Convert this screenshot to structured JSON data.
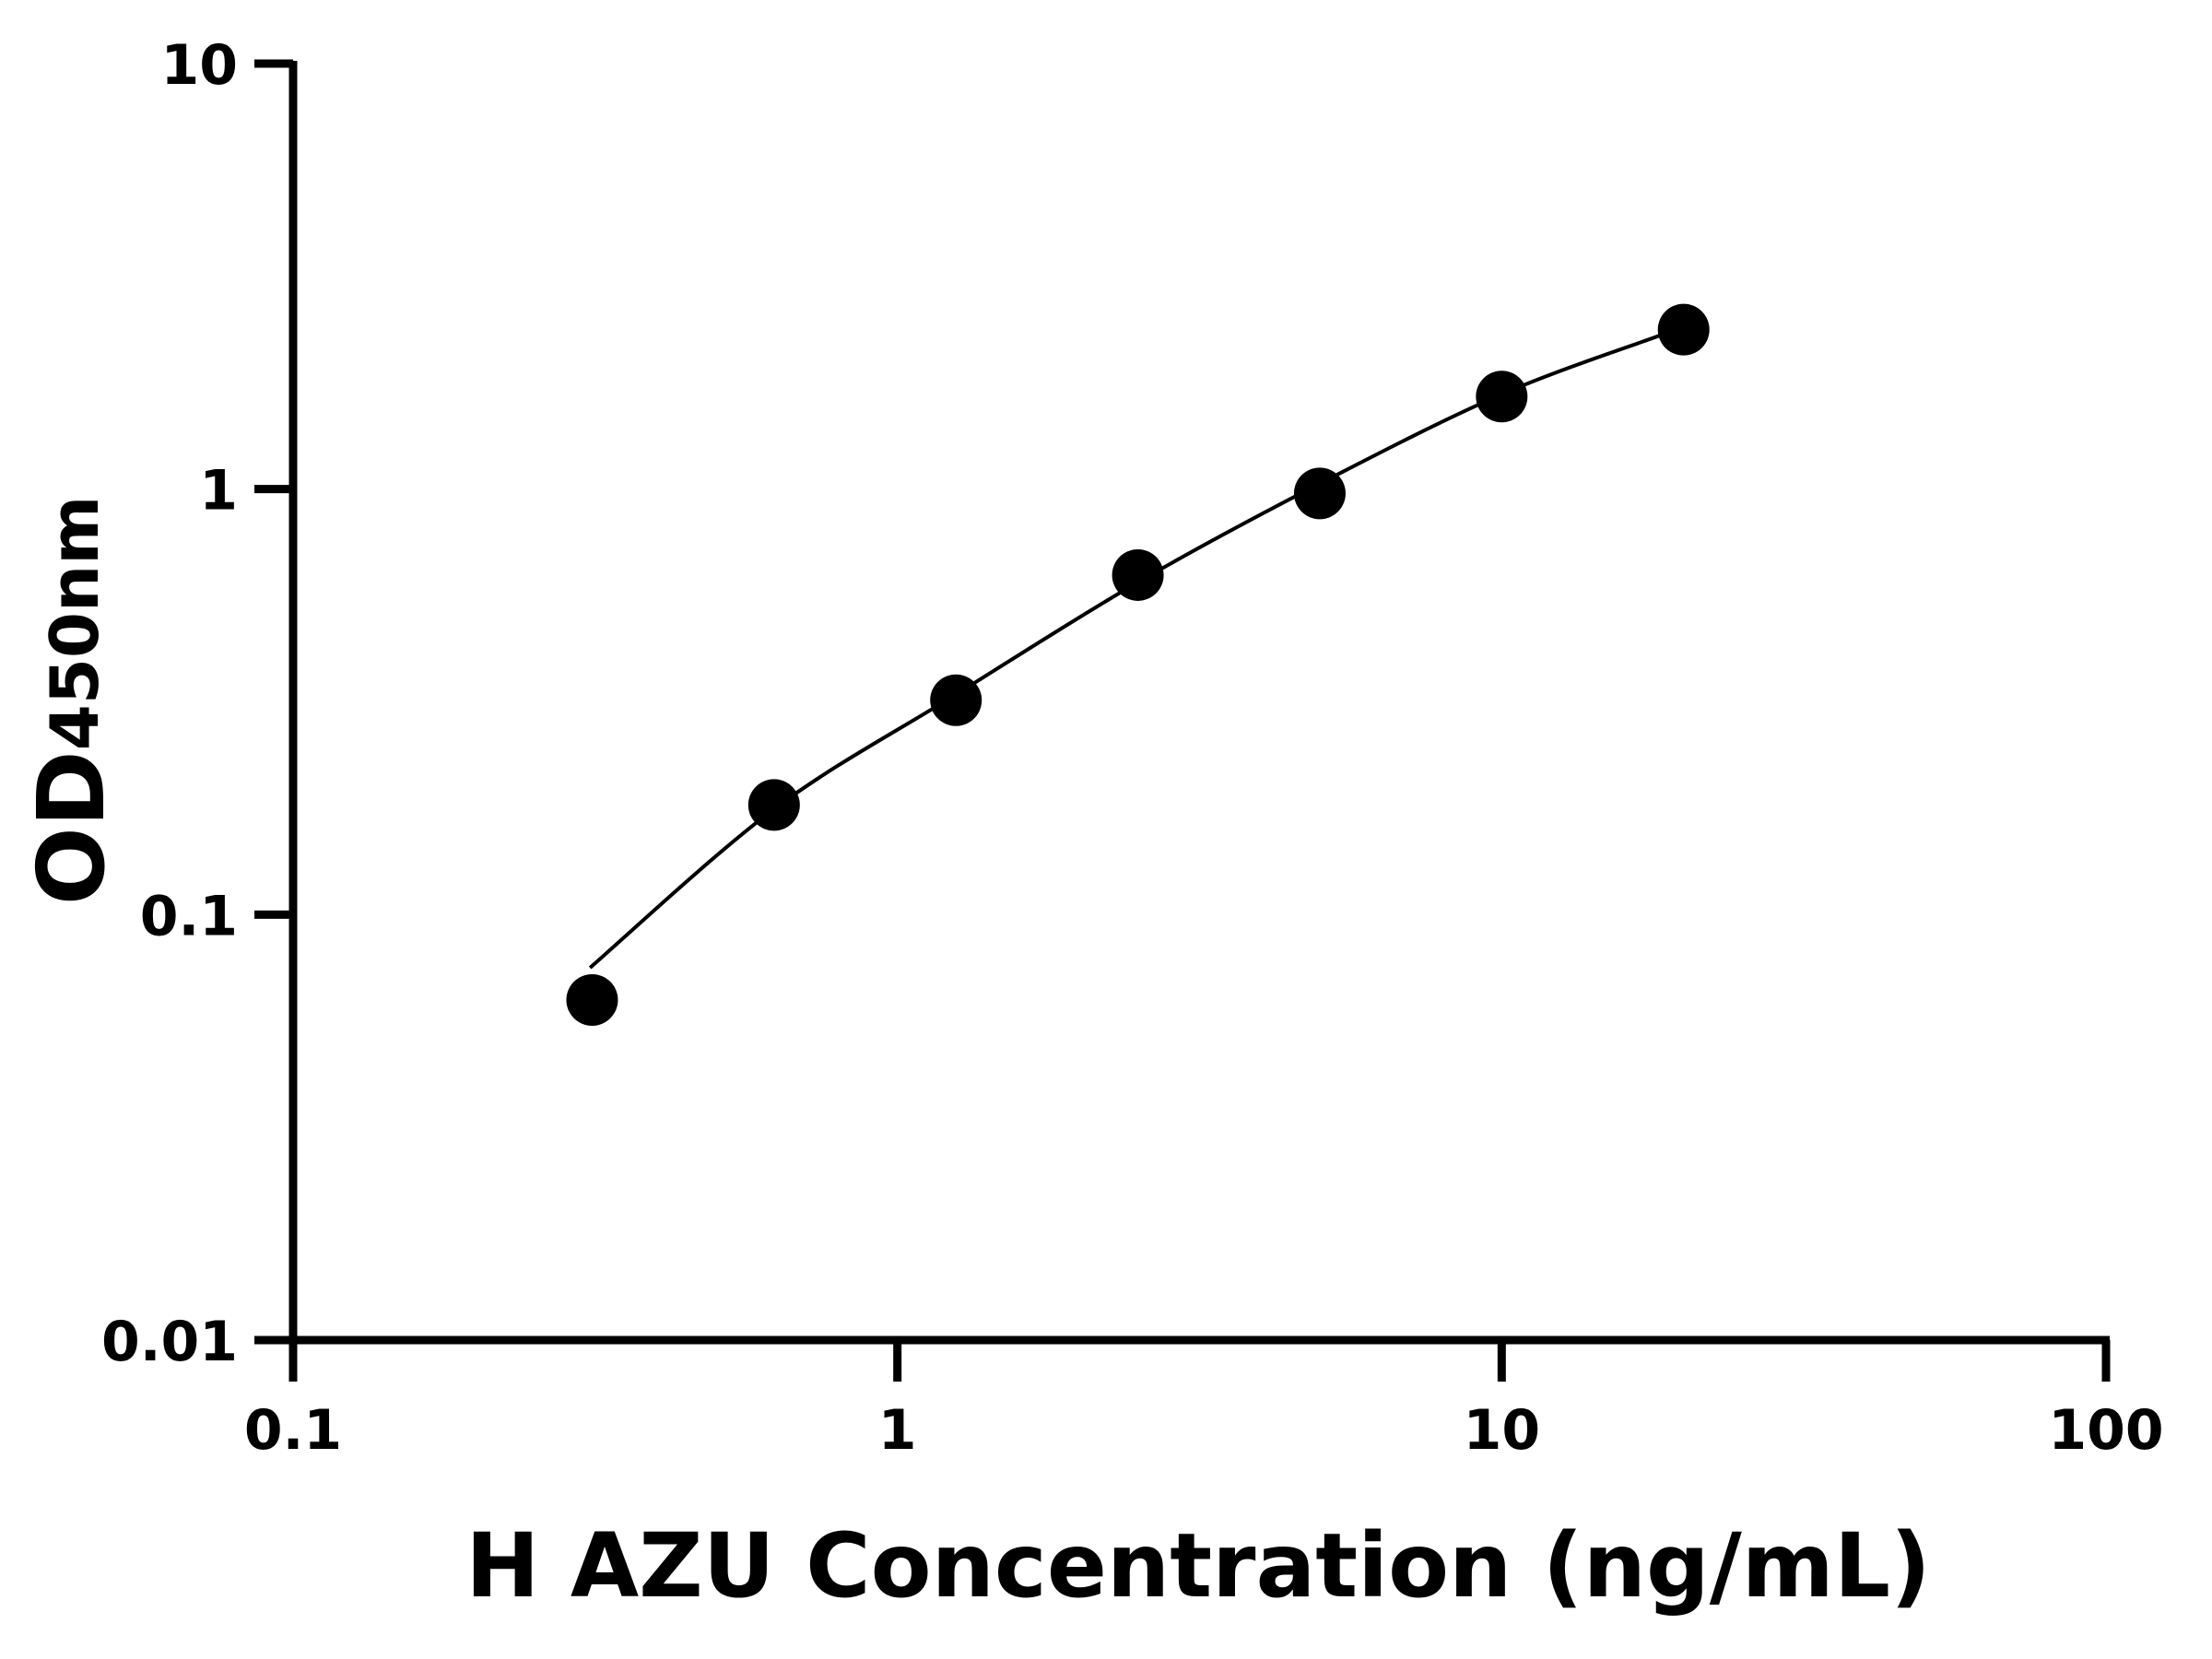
{
  "chart_data": {
    "type": "scatter",
    "xlabel": "H AZU Concentration (ng/mL)",
    "ylabel_main": "OD",
    "ylabel_sub": "450nm",
    "xscale": "log",
    "yscale": "log",
    "xlim": [
      0.1,
      100
    ],
    "ylim": [
      0.01,
      10
    ],
    "xticks": [
      "0.1",
      "1",
      "10",
      "100"
    ],
    "xtick_values": [
      0.1,
      1,
      10,
      100
    ],
    "yticks": [
      "0.01",
      "0.1",
      "1",
      "10"
    ],
    "ytick_values": [
      0.01,
      0.1,
      1,
      10
    ],
    "grid": false,
    "color": "#000000",
    "points": {
      "x": [
        0.3125,
        0.625,
        1.25,
        2.5,
        5,
        10,
        20
      ],
      "y": [
        0.063,
        0.181,
        0.319,
        0.628,
        0.977,
        1.65,
        2.37
      ]
    },
    "fit_curve": {
      "x": [
        0.31,
        0.625,
        1.25,
        2.5,
        5,
        10,
        18.5
      ],
      "y": [
        0.075,
        0.177,
        0.329,
        0.604,
        1.03,
        1.67,
        2.31
      ]
    }
  }
}
